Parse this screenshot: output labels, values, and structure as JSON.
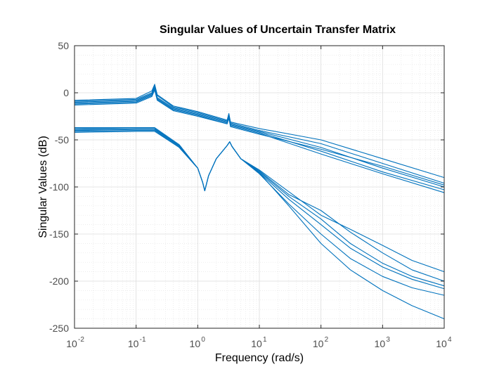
{
  "chart_data": {
    "type": "line",
    "title": "Singular Values of Uncertain Transfer Matrix",
    "xlabel": "Frequency (rad/s)",
    "ylabel": "Singular Values (dB)",
    "xscale": "log",
    "xlim": [
      0.01,
      10000
    ],
    "ylim": [
      -250,
      50
    ],
    "x_ticks": [
      {
        "base": "10",
        "exp": "-2"
      },
      {
        "base": "10",
        "exp": "-1"
      },
      {
        "base": "10",
        "exp": "0"
      },
      {
        "base": "10",
        "exp": "1"
      },
      {
        "base": "10",
        "exp": "2"
      },
      {
        "base": "10",
        "exp": "3"
      },
      {
        "base": "10",
        "exp": "4"
      }
    ],
    "y_ticks": [
      "50",
      "0",
      "-50",
      "-100",
      "-150",
      "-200",
      "-250"
    ],
    "grid": true,
    "minor_grid": true,
    "line_color": "#0072BD",
    "series": [
      {
        "x": [
          0.01,
          0.1,
          0.18,
          0.2,
          0.22,
          0.4,
          1,
          3,
          3.2,
          3.4,
          10,
          100,
          1000,
          10000
        ],
        "values": [
          -8,
          -6,
          2,
          9,
          -2,
          -14,
          -20,
          -29,
          -22,
          -31,
          -38,
          -50,
          -70,
          -90
        ]
      },
      {
        "x": [
          0.01,
          0.1,
          0.18,
          0.2,
          0.22,
          0.4,
          1,
          3,
          3.2,
          3.4,
          10,
          100,
          1000,
          10000
        ],
        "values": [
          -9,
          -7,
          0,
          8,
          -3,
          -15,
          -21,
          -30,
          -23,
          -32,
          -40,
          -54,
          -75,
          -96
        ]
      },
      {
        "x": [
          0.01,
          0.1,
          0.18,
          0.2,
          0.22,
          0.4,
          1,
          3,
          3.2,
          3.4,
          10,
          100,
          1000,
          10000
        ],
        "values": [
          -10,
          -8,
          -1,
          6,
          -5,
          -16,
          -22,
          -31,
          -24,
          -33,
          -41,
          -58,
          -80,
          -100
        ]
      },
      {
        "x": [
          0.01,
          0.1,
          0.18,
          0.2,
          0.22,
          0.4,
          1,
          3,
          3.2,
          3.4,
          10,
          100,
          1000,
          10000
        ],
        "values": [
          -11,
          -9,
          -2,
          5,
          -6,
          -17,
          -23,
          -32,
          -25,
          -34,
          -42,
          -62,
          -84,
          -103
        ]
      },
      {
        "x": [
          0.01,
          0.1,
          0.18,
          0.2,
          0.22,
          0.4,
          1,
          3,
          3.2,
          3.4,
          10,
          100,
          1000,
          10000
        ],
        "values": [
          -12,
          -10,
          -3,
          4,
          -7,
          -18,
          -24,
          -33,
          -26,
          -35,
          -43,
          -65,
          -86,
          -106
        ]
      },
      {
        "x": [
          0.01,
          0.1,
          0.18,
          0.2,
          0.22,
          0.4,
          1,
          3,
          3.2,
          3.4,
          10,
          100,
          1000,
          10000
        ],
        "values": [
          -13,
          -11,
          -4,
          3,
          -8,
          -19,
          -25,
          -33,
          -27,
          -36,
          -44,
          -60,
          -78,
          -98
        ]
      },
      {
        "x": [
          0.01,
          0.1,
          0.2,
          0.5,
          1,
          1.2,
          1.3,
          1.5,
          2,
          3,
          3.3,
          3.6,
          5,
          10,
          30,
          100,
          300,
          1000,
          3000,
          10000
        ],
        "values": [
          -37,
          -37,
          -37,
          -55,
          -80,
          -95,
          -104,
          -88,
          -70,
          -56,
          -52,
          -57,
          -70,
          -82,
          -105,
          -130,
          -145,
          -162,
          -178,
          -190
        ]
      },
      {
        "x": [
          0.01,
          0.1,
          0.2,
          0.5,
          1,
          1.2,
          1.3,
          1.5,
          2,
          3,
          3.3,
          3.6,
          5,
          10,
          30,
          100,
          300,
          1000,
          3000,
          10000
        ],
        "values": [
          -39,
          -38,
          -38,
          -56,
          -80,
          -95,
          -104,
          -88,
          -70,
          -56,
          -52,
          -57,
          -70,
          -83,
          -108,
          -125,
          -148,
          -170,
          -188,
          -200
        ]
      },
      {
        "x": [
          0.01,
          0.1,
          0.2,
          0.5,
          1,
          1.2,
          1.3,
          1.5,
          2,
          3,
          3.3,
          3.6,
          5,
          10,
          30,
          100,
          300,
          1000,
          3000,
          10000
        ],
        "values": [
          -40,
          -39,
          -39,
          -57,
          -80,
          -95,
          -104,
          -88,
          -70,
          -56,
          -52,
          -57,
          -70,
          -84,
          -110,
          -134,
          -160,
          -181,
          -195,
          -205
        ]
      },
      {
        "x": [
          0.01,
          0.1,
          0.2,
          0.5,
          1,
          1.2,
          1.3,
          1.5,
          2,
          3,
          3.3,
          3.6,
          5,
          10,
          30,
          100,
          300,
          1000,
          3000,
          10000
        ],
        "values": [
          -41,
          -40,
          -40,
          -58,
          -80,
          -95,
          -104,
          -88,
          -70,
          -56,
          -52,
          -57,
          -70,
          -85,
          -113,
          -140,
          -165,
          -185,
          -198,
          -208
        ]
      },
      {
        "x": [
          0.01,
          0.1,
          0.2,
          0.5,
          1,
          1.2,
          1.3,
          1.5,
          2,
          3,
          3.3,
          3.6,
          5,
          10,
          30,
          100,
          300,
          1000,
          3000,
          10000
        ],
        "values": [
          -42,
          -41,
          -41,
          -58,
          -80,
          -95,
          -104,
          -88,
          -70,
          -56,
          -52,
          -57,
          -70,
          -86,
          -118,
          -150,
          -176,
          -195,
          -207,
          -215
        ]
      },
      {
        "x": [
          0.01,
          0.1,
          0.2,
          0.5,
          1,
          1.2,
          1.3,
          1.5,
          2,
          3,
          3.3,
          3.6,
          5,
          10,
          30,
          100,
          300,
          1000,
          3000,
          10000
        ],
        "values": [
          -38,
          -38,
          -38,
          -56,
          -80,
          -95,
          -104,
          -88,
          -70,
          -56,
          -52,
          -57,
          -70,
          -85,
          -120,
          -160,
          -188,
          -210,
          -226,
          -240
        ]
      }
    ]
  }
}
